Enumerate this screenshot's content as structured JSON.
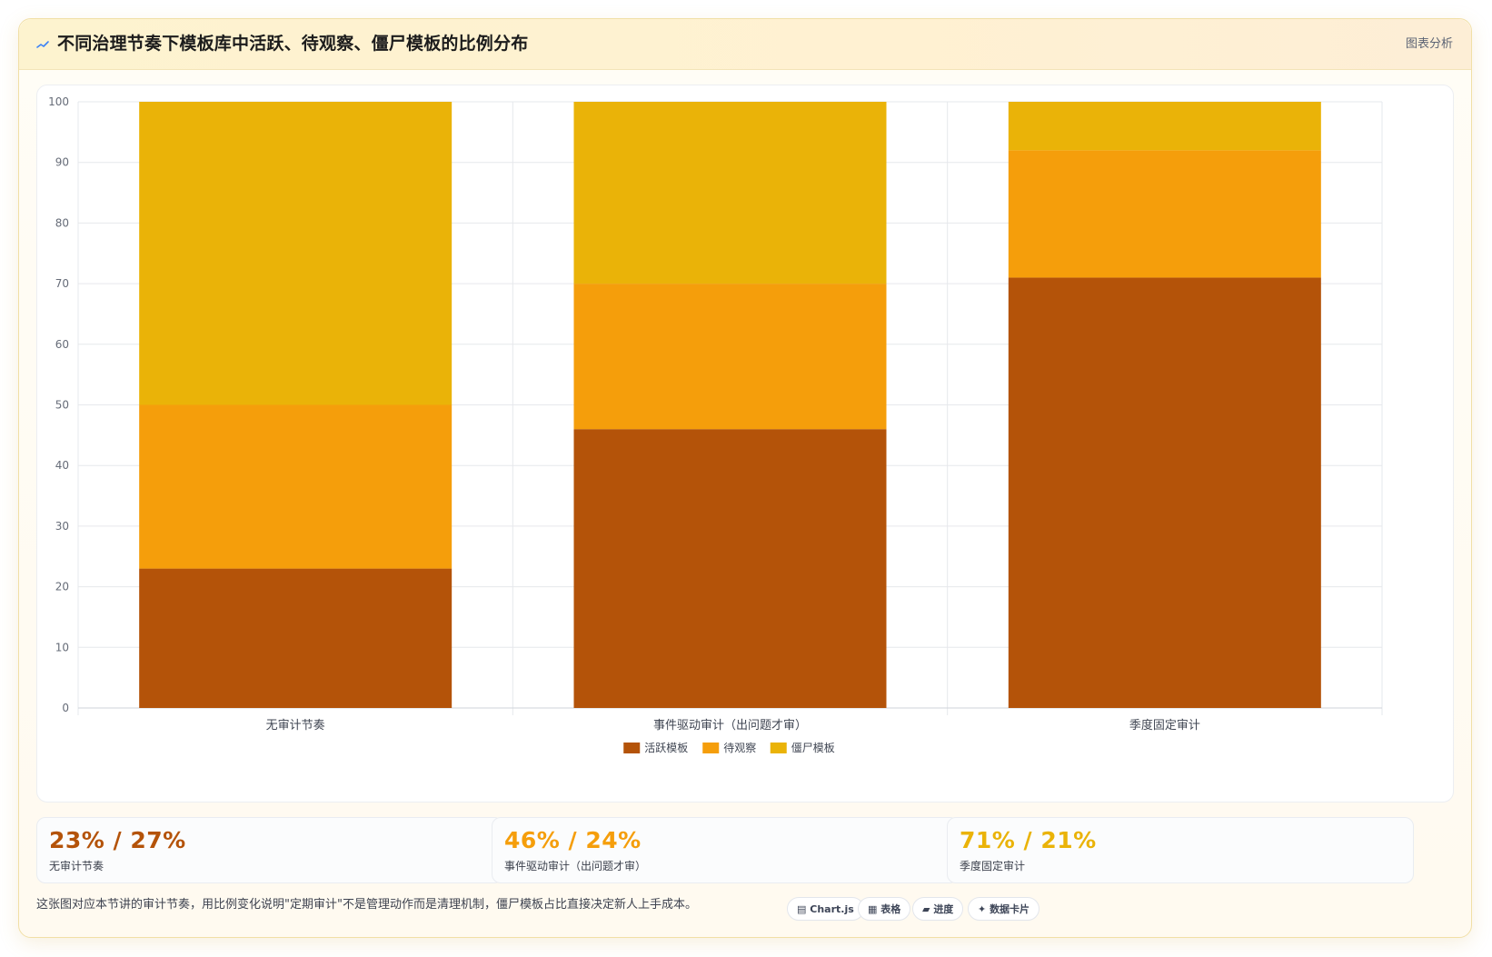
{
  "header": {
    "icon": "chart-spark-icon",
    "title": "不同治理节奏下模板库中活跃、待观察、僵尸模板的比例分布",
    "right_label": "图表分析"
  },
  "chart_data": {
    "type": "bar",
    "stacked": true,
    "categories": [
      "无审计节奏",
      "事件驱动审计（出问题才审）",
      "季度固定审计"
    ],
    "series": [
      {
        "name": "活跃模板",
        "color": "#b45309",
        "values": [
          23,
          46,
          71
        ]
      },
      {
        "name": "待观察",
        "color": "#f59e0b",
        "values": [
          27,
          24,
          21
        ]
      },
      {
        "name": "僵尸模板",
        "color": "#eab308",
        "values": [
          50,
          30,
          8
        ]
      }
    ],
    "ylim": [
      0,
      100
    ],
    "yticks": [
      0,
      10,
      20,
      30,
      40,
      50,
      60,
      70,
      80,
      90,
      100
    ],
    "grid": true,
    "legend": "bottom-center"
  },
  "stats": [
    {
      "value": "23% / 27%",
      "label": "无审计节奏",
      "color": "#b45309"
    },
    {
      "value": "46% / 24%",
      "label": "事件驱动审计（出问题才审）",
      "color": "#f59e0b"
    },
    {
      "value": "71% / 21%",
      "label": "季度固定审计",
      "color": "#eab308"
    }
  ],
  "footnote": "这张图对应本节讲的审计节奏，用比例变化说明\"定期审计\"不是管理动作而是清理机制，僵尸模板占比直接决定新人上手成本。",
  "chips": [
    {
      "icon": "chart-icon",
      "glyph": "▤",
      "label": "Chart.js"
    },
    {
      "icon": "table-icon",
      "glyph": "▦",
      "label": "表格"
    },
    {
      "icon": "progress-icon",
      "glyph": "▰",
      "label": "进度"
    },
    {
      "icon": "sparkle-icon",
      "glyph": "✦",
      "label": "数据卡片"
    }
  ]
}
